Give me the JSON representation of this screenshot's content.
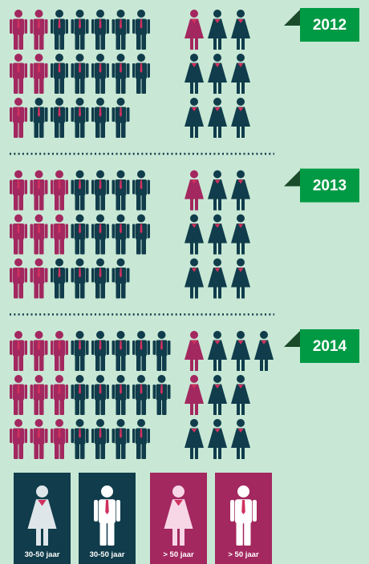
{
  "years": [
    {
      "label": "2012",
      "men": {
        "over_50": [
          2,
          2,
          1
        ],
        "age_30_50": [
          5,
          5,
          5
        ]
      },
      "women": {
        "over_50": [
          1,
          0,
          0
        ],
        "age_30_50": [
          2,
          3,
          3
        ]
      }
    },
    {
      "label": "2013",
      "men": {
        "over_50": [
          3,
          3,
          2
        ],
        "age_30_50": [
          4,
          4,
          4
        ]
      },
      "women": {
        "over_50": [
          1,
          0,
          0
        ],
        "age_30_50": [
          2,
          3,
          3
        ]
      }
    },
    {
      "label": "2014",
      "men": {
        "over_50": [
          3,
          3,
          3
        ],
        "age_30_50": [
          5,
          5,
          4
        ]
      },
      "women": {
        "over_50": [
          1,
          1,
          0
        ],
        "age_30_50": [
          3,
          2,
          3
        ]
      }
    }
  ],
  "legend": [
    "30-50 jaar",
    "30-50 jaar",
    "> 50 jaar",
    "> 50 jaar"
  ],
  "colors": {
    "over_50": "#a3285f",
    "age_30_50": "#103c4b",
    "badge": "#009a44"
  }
}
